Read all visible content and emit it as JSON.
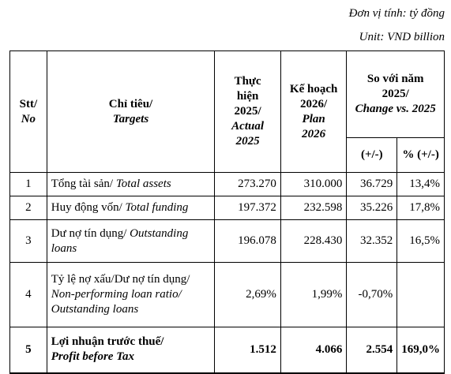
{
  "unit_vn": "Đơn vị tính: tỷ đồng",
  "unit_en": "Unit: VND billion",
  "header": {
    "stt_vn": "Stt/",
    "stt_en": "No",
    "target_vn": "Chỉ tiêu/",
    "target_en": "Targets",
    "actual_vn_1": "Thực",
    "actual_vn_2": "hiện",
    "actual_vn_3": "2025/",
    "actual_en_1": "Actual",
    "actual_en_2": "2025",
    "plan_vn_1": "Kế hoạch",
    "plan_vn_2": "2026/",
    "plan_en_1": "Plan",
    "plan_en_2": "2026",
    "change_vn_1": "So với năm",
    "change_vn_2": "2025/",
    "change_en": "Change vs. 2025",
    "abs": "(+/-)",
    "pct": "% (+/-)"
  },
  "rows": [
    {
      "no": "1",
      "vn": "Tổng tài sản/ ",
      "en": "Total assets",
      "actual": "273.270",
      "plan": "310.000",
      "abs": "36.729",
      "pct": "13,4%"
    },
    {
      "no": "2",
      "vn": "Huy động vốn/ ",
      "en": "Total funding",
      "actual": "197.372",
      "plan": "232.598",
      "abs": "35.226",
      "pct": "17,8%"
    },
    {
      "no": "3",
      "vn": "Dư nợ tín dụng/ ",
      "en": "Outstanding",
      "en2": "loans",
      "actual": "196.078",
      "plan": "228.430",
      "abs": "32.352",
      "pct": "16,5%"
    },
    {
      "no": "4",
      "vn": "Tỷ lệ nợ xấu/Dư nợ tín dụng/",
      "en": "Non-performing loan ratio/",
      "en2": "Outstanding loans",
      "actual": "2,69%",
      "plan": "1,99%",
      "abs": "-0,70%",
      "pct": ""
    },
    {
      "no": "5",
      "vn": "Lợi nhuận trước thuế/",
      "en": "Profit before Tax",
      "actual": "1.512",
      "plan": "4.066",
      "abs": "2.554",
      "pct": "169,0%"
    }
  ]
}
